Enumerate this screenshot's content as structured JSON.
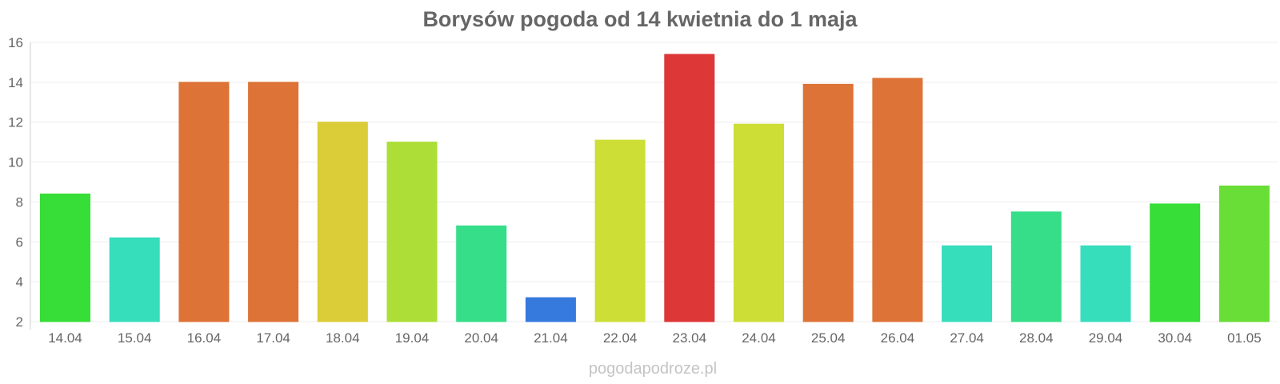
{
  "chart_data": {
    "type": "bar",
    "title": "Borysów pogoda od 14 kwietnia do 1 maja",
    "xlabel": "",
    "ylabel": "",
    "ylim": [
      2,
      16
    ],
    "yticks": [
      "2",
      "4",
      "6",
      "8",
      "10",
      "12",
      "14",
      "16"
    ],
    "categories": [
      "14.04",
      "15.04",
      "16.04",
      "17.04",
      "18.04",
      "19.04",
      "20.04",
      "21.04",
      "22.04",
      "23.04",
      "24.04",
      "25.04",
      "26.04",
      "27.04",
      "28.04",
      "29.04",
      "30.04",
      "01.05"
    ],
    "values": [
      8.4,
      6.2,
      14.0,
      14.0,
      12.0,
      11.0,
      6.8,
      3.2,
      11.1,
      15.4,
      11.9,
      13.9,
      14.2,
      5.8,
      7.5,
      5.8,
      7.9,
      8.8
    ],
    "colors": [
      "#33dd33",
      "#33ddbb",
      "#dd7033",
      "#dd7033",
      "#d9cc33",
      "#aadd33",
      "#33dd88",
      "#3377dd",
      "#ccdd33",
      "#dd3333",
      "#ccdd33",
      "#dd7033",
      "#dd7033",
      "#33ddbb",
      "#33dd88",
      "#33ddbb",
      "#33dd33",
      "#66dd33"
    ],
    "grid": true,
    "legend": "none",
    "watermark": "pogodapodroze.pl"
  }
}
